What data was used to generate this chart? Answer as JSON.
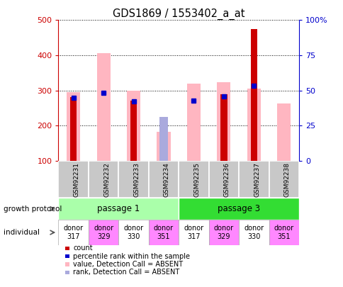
{
  "title": "GDS1869 / 1553402_a_at",
  "samples": [
    "GSM92231",
    "GSM92232",
    "GSM92233",
    "GSM92234",
    "GSM92235",
    "GSM92236",
    "GSM92237",
    "GSM92238"
  ],
  "count_values": [
    280,
    null,
    270,
    null,
    null,
    290,
    475,
    null
  ],
  "value_absent": [
    295,
    405,
    300,
    183,
    320,
    323,
    305,
    263
  ],
  "rank_absent": [
    null,
    null,
    null,
    225,
    null,
    null,
    null,
    null
  ],
  "percentile_rank": [
    278,
    293,
    268,
    null,
    270,
    283,
    313,
    null
  ],
  "ylim_left": [
    100,
    500
  ],
  "ylim_right": [
    0,
    100
  ],
  "yticks_left": [
    100,
    200,
    300,
    400,
    500
  ],
  "yticks_right": [
    0,
    25,
    50,
    75,
    100
  ],
  "ytick_labels_right": [
    "0",
    "25",
    "50",
    "75",
    "100%"
  ],
  "individual_labels": [
    "donor\n317",
    "donor\n329",
    "donor\n330",
    "donor\n351",
    "donor\n317",
    "donor\n329",
    "donor\n330",
    "donor\n351"
  ],
  "individual_colors": [
    "#FFFFFF",
    "#FF88FF",
    "#FFFFFF",
    "#FF88FF",
    "#FFFFFF",
    "#FF88FF",
    "#FFFFFF",
    "#FF88FF"
  ],
  "count_color": "#CC0000",
  "value_absent_color": "#FFB6C1",
  "rank_absent_color": "#AAAADD",
  "percentile_color": "#0000CC",
  "left_axis_color": "#CC0000",
  "right_axis_color": "#0000CC",
  "passage1_color": "#AAFFAA",
  "passage3_color": "#33DD33",
  "gray_bg": "#C8C8C8"
}
